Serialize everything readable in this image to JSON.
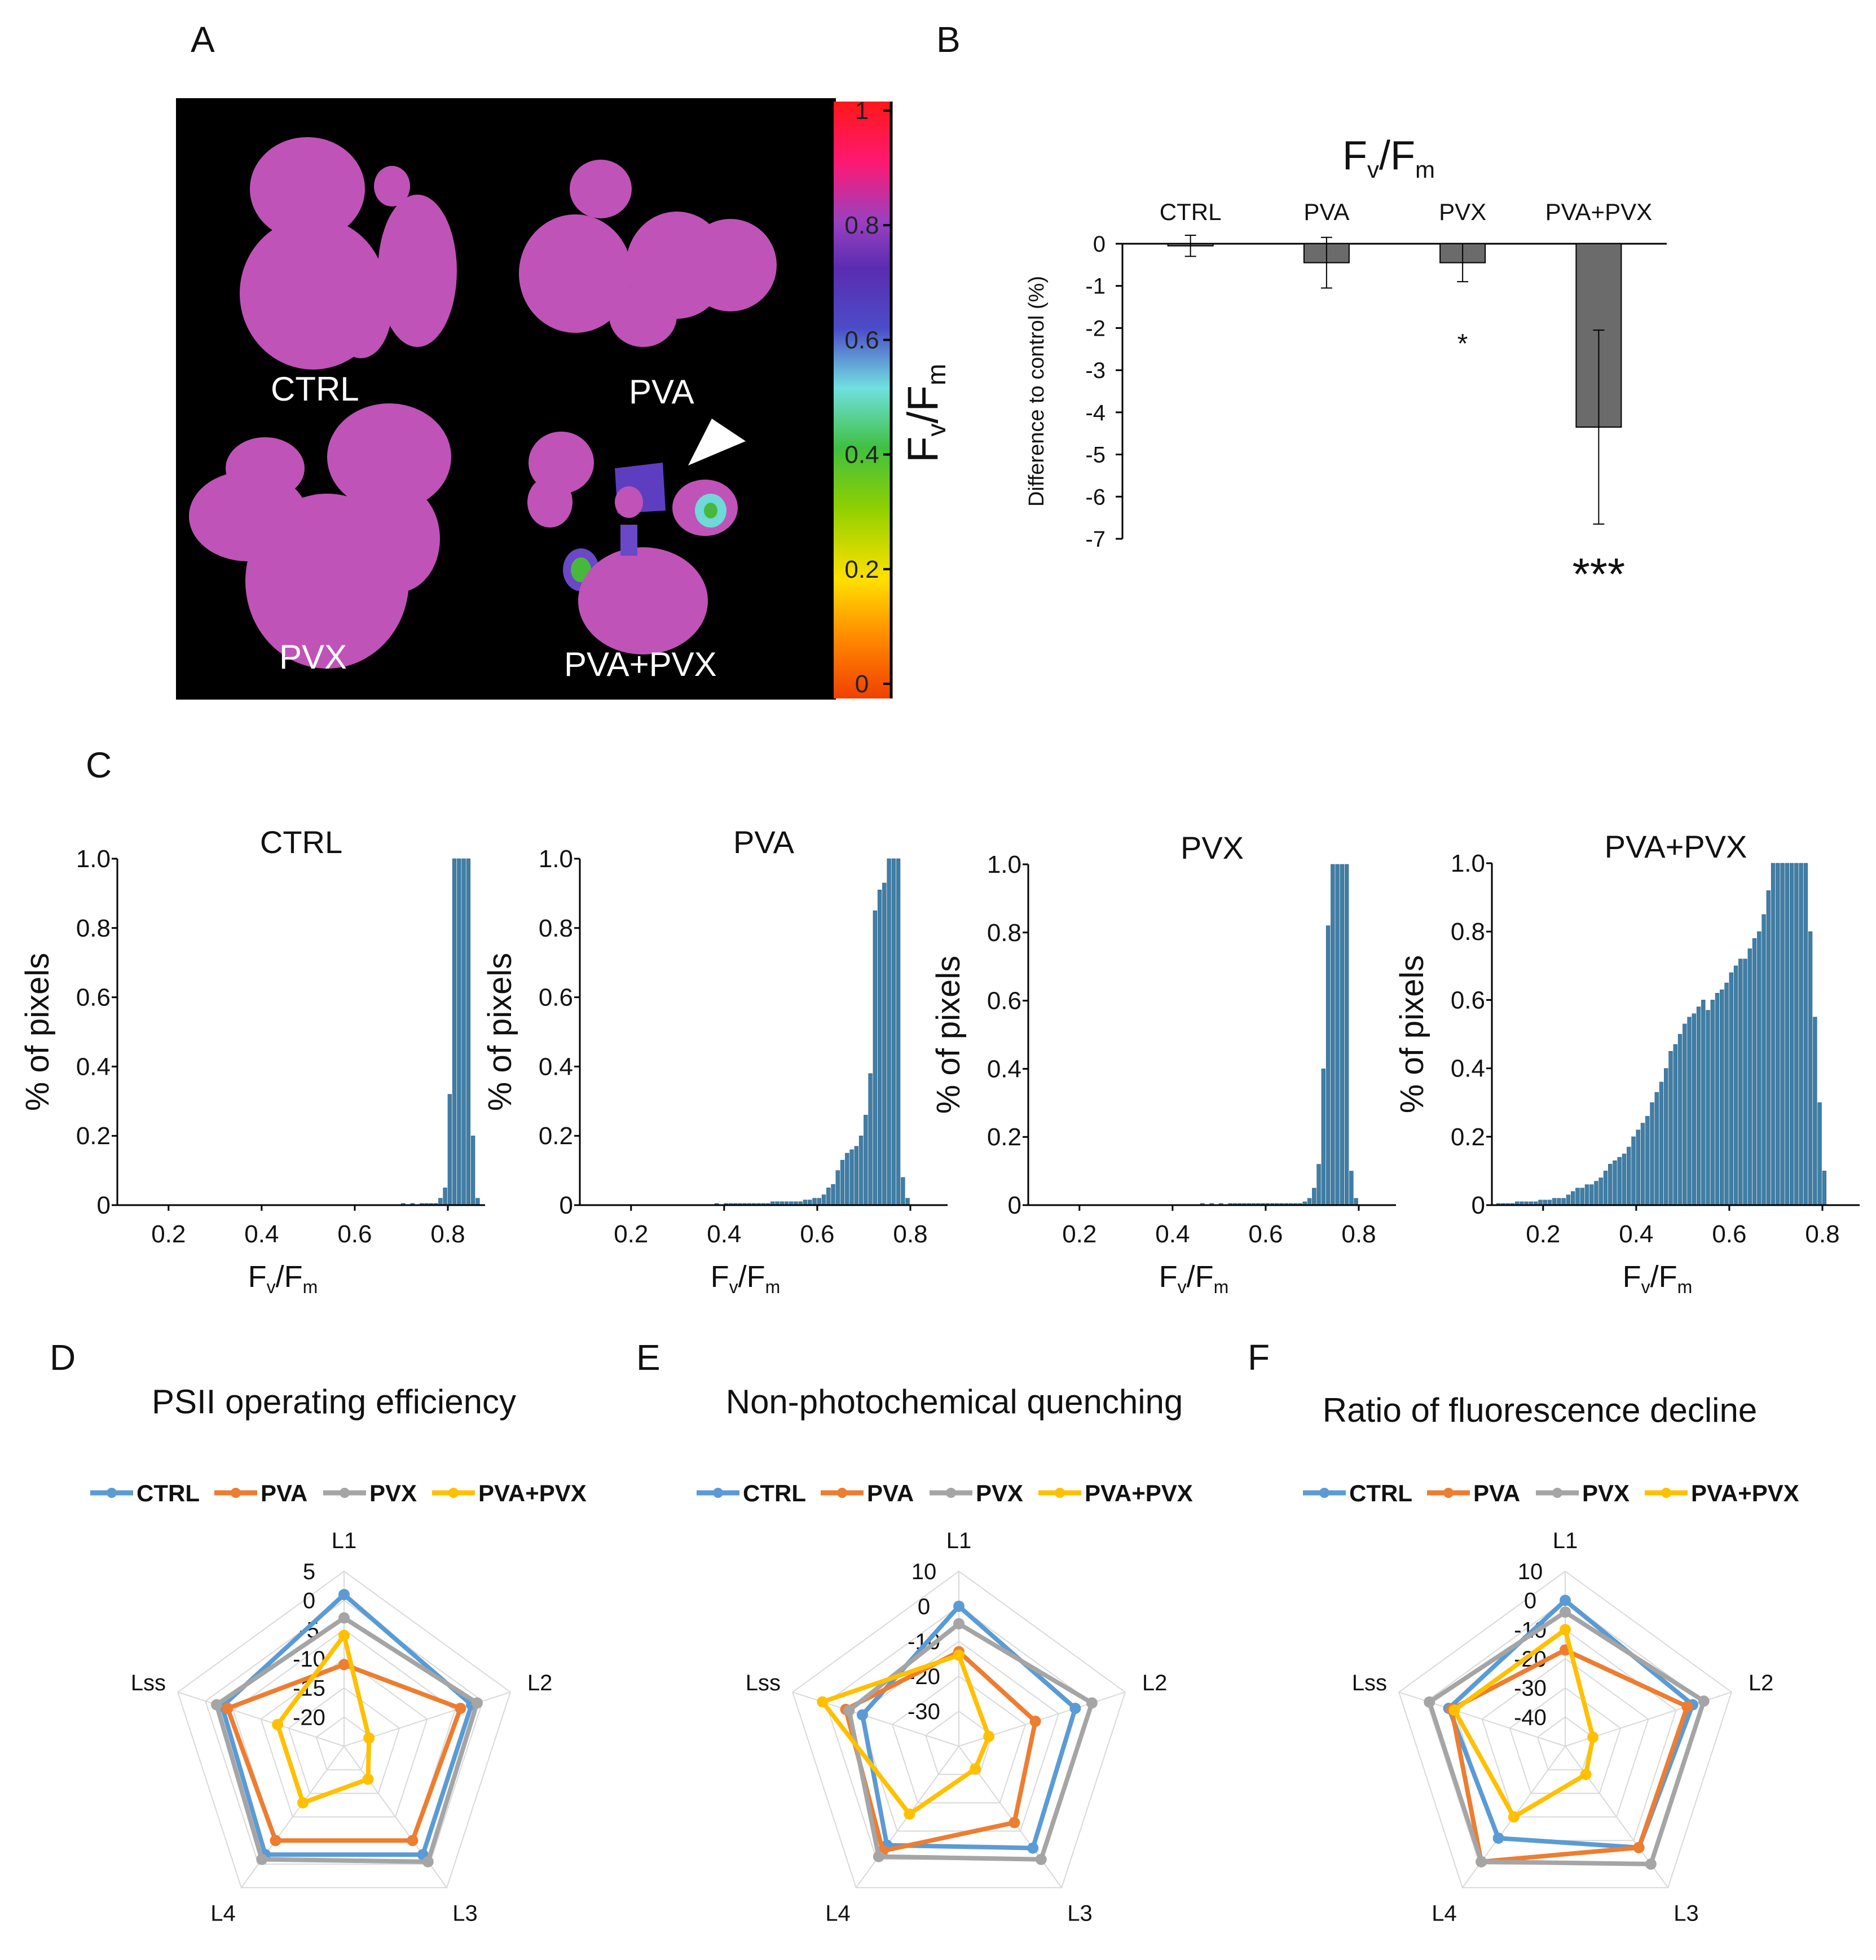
{
  "panels": {
    "A": {
      "label": "A",
      "plant_labels": [
        "CTRL",
        "PVA",
        "PVX",
        "PVA+PVX"
      ],
      "colorbar": {
        "ticks": [
          "1",
          "0.8",
          "0.6",
          "0.4",
          "0.2",
          "0"
        ],
        "label_main": "F",
        "label_sub1": "v",
        "label_mid": "/F",
        "label_sub2": "m"
      },
      "colors": {
        "background": "#000000",
        "leaf": "#c053b7",
        "stress_teal": "#6fd8d8",
        "stress_green": "#48b83c"
      }
    },
    "B": {
      "label": "B"
    },
    "C": {
      "label": "C"
    },
    "D": {
      "label": "D"
    },
    "E": {
      "label": "E"
    },
    "F": {
      "label": "F"
    }
  },
  "chart_data": [
    {
      "id": "B",
      "type": "bar",
      "title": "Fv/Fm",
      "title_parts": {
        "main": "F",
        "sub1": "v",
        "mid": "/F",
        "sub2": "m"
      },
      "categories": [
        "CTRL",
        "PVA",
        "PVX",
        "PVA+PVX"
      ],
      "values": [
        -0.05,
        -0.45,
        -0.45,
        -4.35
      ],
      "errors": [
        0.25,
        0.6,
        0.45,
        2.3
      ],
      "significance": [
        "",
        "",
        "*",
        "***"
      ],
      "ylabel": "Difference to control (%)",
      "ylim": [
        -7,
        0
      ],
      "yticks": [
        0,
        -1,
        -2,
        -3,
        -4,
        -5,
        -6,
        -7
      ],
      "bar_color": "#6b6b6b"
    },
    {
      "id": "C",
      "type": "bar",
      "subtype": "histogram",
      "ylabel": "% of pixels",
      "xlabel_parts": {
        "main": "F",
        "sub1": "v",
        "mid": "/F",
        "sub2": "m"
      },
      "xlim": [
        0.09,
        0.88
      ],
      "ylim": [
        0,
        1.0
      ],
      "xticks": [
        "0.2",
        "0.4",
        "0.6",
        "0.8"
      ],
      "yticks": [
        "0",
        "0.2",
        "0.4",
        "0.6",
        "0.8",
        "1.0"
      ],
      "bar_color": "#3f7ea6",
      "bin_start": 0.1,
      "bin_width": 0.01,
      "series": [
        {
          "name": "CTRL",
          "values": [
            0,
            0,
            0,
            0,
            0,
            0,
            0,
            0,
            0,
            0,
            0,
            0,
            0,
            0,
            0,
            0,
            0,
            0,
            0,
            0,
            0,
            0,
            0,
            0,
            0,
            0,
            0,
            0,
            0,
            0,
            0,
            0,
            0,
            0,
            0,
            0,
            0,
            0,
            0,
            0,
            0,
            0,
            0,
            0,
            0,
            0,
            0,
            0,
            0,
            0,
            0,
            0,
            0,
            0,
            0,
            0,
            0,
            0,
            0,
            0,
            0.005,
            0,
            0.005,
            0,
            0.005,
            0.005,
            0.005,
            0.005,
            0.02,
            0.05,
            0.32,
            1.0,
            1.0,
            1.0,
            1.0,
            0.2,
            0.02
          ]
        },
        {
          "name": "PVA",
          "values": [
            0,
            0,
            0,
            0,
            0,
            0,
            0,
            0,
            0,
            0,
            0,
            0,
            0,
            0,
            0,
            0,
            0,
            0,
            0,
            0,
            0,
            0,
            0,
            0,
            0,
            0,
            0,
            0,
            0.005,
            0,
            0.005,
            0.005,
            0.005,
            0.005,
            0.005,
            0.005,
            0.005,
            0.005,
            0.005,
            0.005,
            0.01,
            0.01,
            0.01,
            0.01,
            0.01,
            0.01,
            0.01,
            0.015,
            0.015,
            0.02,
            0.02,
            0.03,
            0.05,
            0.06,
            0.1,
            0.13,
            0.15,
            0.16,
            0.17,
            0.2,
            0.26,
            0.38,
            0.85,
            0.91,
            0.93,
            1.0,
            1.0,
            1.0,
            0.08,
            0.02
          ]
        },
        {
          "name": "PVX",
          "values": [
            0,
            0,
            0,
            0,
            0,
            0,
            0,
            0,
            0,
            0,
            0,
            0,
            0,
            0,
            0,
            0,
            0,
            0,
            0,
            0,
            0,
            0,
            0,
            0,
            0,
            0,
            0,
            0,
            0,
            0,
            0,
            0,
            0,
            0,
            0,
            0,
            0.005,
            0,
            0.005,
            0,
            0.005,
            0,
            0.005,
            0.005,
            0.005,
            0.005,
            0.005,
            0.005,
            0.005,
            0.005,
            0.005,
            0.005,
            0.005,
            0.005,
            0.005,
            0.005,
            0.005,
            0.005,
            0.01,
            0.02,
            0.05,
            0.12,
            0.4,
            0.82,
            1.0,
            1.0,
            1.0,
            1.0,
            0.1,
            0.02
          ]
        },
        {
          "name": "PVA+PVX",
          "values": [
            0.005,
            0.005,
            0.005,
            0.005,
            0.01,
            0.01,
            0.01,
            0.01,
            0.01,
            0.015,
            0.015,
            0.015,
            0.02,
            0.02,
            0.02,
            0.03,
            0.04,
            0.05,
            0.05,
            0.06,
            0.06,
            0.07,
            0.08,
            0.1,
            0.12,
            0.13,
            0.14,
            0.15,
            0.17,
            0.2,
            0.22,
            0.24,
            0.26,
            0.3,
            0.33,
            0.36,
            0.4,
            0.45,
            0.47,
            0.5,
            0.53,
            0.55,
            0.56,
            0.58,
            0.6,
            0.57,
            0.6,
            0.62,
            0.63,
            0.65,
            0.68,
            0.7,
            0.72,
            0.72,
            0.75,
            0.78,
            0.8,
            0.85,
            0.92,
            1.0,
            1.0,
            1.0,
            1.0,
            1.0,
            1.0,
            1.0,
            1.0,
            0.8,
            0.55,
            0.3,
            0.1
          ]
        }
      ]
    },
    {
      "id": "D",
      "type": "radar",
      "title": "PSII operating efficiency",
      "axes": [
        "L1",
        "L2",
        "L3",
        "L4",
        "Lss"
      ],
      "rlim": [
        -25,
        5
      ],
      "ticks": [
        "5",
        "0",
        "-5",
        "-10",
        "-15",
        "-20"
      ],
      "series": [
        {
          "name": "CTRL",
          "color": "#5b9bd5",
          "values": [
            1,
            -2,
            -2,
            -2,
            -3
          ]
        },
        {
          "name": "PVA",
          "color": "#ed7d31",
          "values": [
            -11,
            -4,
            -5,
            -5,
            -4
          ]
        },
        {
          "name": "PVX",
          "color": "#a5a5a5",
          "values": [
            -3,
            -1,
            -0.5,
            -1,
            -2
          ]
        },
        {
          "name": "PVA+PVX",
          "color": "#ffc000",
          "values": [
            -6,
            -20.5,
            -18,
            -13,
            -13
          ]
        }
      ]
    },
    {
      "id": "E",
      "type": "radar",
      "title": "Non-photochemical quenching",
      "axes": [
        "L1",
        "L2",
        "L3",
        "L4",
        "Lss"
      ],
      "rlim": [
        -40,
        10
      ],
      "ticks": [
        "10",
        "0",
        "-10",
        "-20",
        "-30"
      ],
      "series": [
        {
          "name": "CTRL",
          "color": "#5b9bd5",
          "values": [
            0,
            -5,
            -4,
            -5,
            -11
          ]
        },
        {
          "name": "PVA",
          "color": "#ed7d31",
          "values": [
            -13,
            -17,
            -13,
            -3,
            -6
          ]
        },
        {
          "name": "PVX",
          "color": "#a5a5a5",
          "values": [
            -5,
            0,
            0,
            -1,
            -7
          ]
        },
        {
          "name": "PVA+PVX",
          "color": "#ffc000",
          "values": [
            -14,
            -31,
            -32,
            -16,
            1
          ]
        }
      ]
    },
    {
      "id": "F",
      "type": "radar",
      "title": "Ratio of fluorescence decline",
      "axes": [
        "L1",
        "L2",
        "L3",
        "L4",
        "Lss"
      ],
      "rlim": [
        -50,
        10
      ],
      "ticks": [
        "10",
        "0",
        "-10",
        "-20",
        "-30",
        "-40"
      ],
      "series": [
        {
          "name": "CTRL",
          "color": "#5b9bd5",
          "values": [
            0,
            -4,
            -7,
            -11,
            -8
          ]
        },
        {
          "name": "PVA",
          "color": "#ed7d31",
          "values": [
            -17,
            -6,
            -7,
            -1,
            -9
          ]
        },
        {
          "name": "PVX",
          "color": "#a5a5a5",
          "values": [
            -4,
            0,
            0,
            -1,
            -1
          ]
        },
        {
          "name": "PVA+PVX",
          "color": "#ffc000",
          "values": [
            -10,
            -40,
            -38,
            -20,
            -10
          ]
        }
      ]
    }
  ]
}
